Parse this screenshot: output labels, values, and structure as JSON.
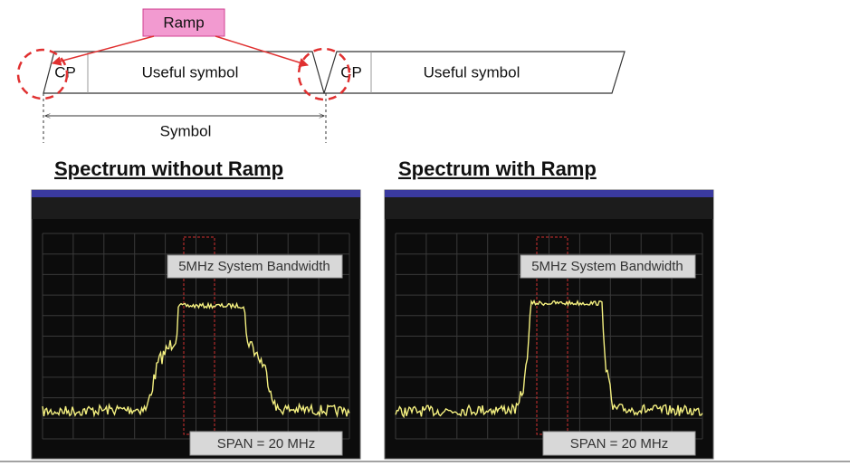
{
  "diagram": {
    "ramp_label": "Ramp",
    "symbols": [
      {
        "cp": "CP",
        "body": "Useful symbol"
      },
      {
        "cp": "CP",
        "body": "Useful symbol"
      }
    ],
    "symbol_label": "Symbol"
  },
  "panels": [
    {
      "title": "Spectrum without Ramp",
      "bandwidth_label": "5MHz System Bandwidth",
      "span_label": "SPAN = 20 MHz"
    },
    {
      "title": "Spectrum with Ramp",
      "bandwidth_label": "5MHz System Bandwidth",
      "span_label": "SPAN = 20 MHz"
    }
  ]
}
